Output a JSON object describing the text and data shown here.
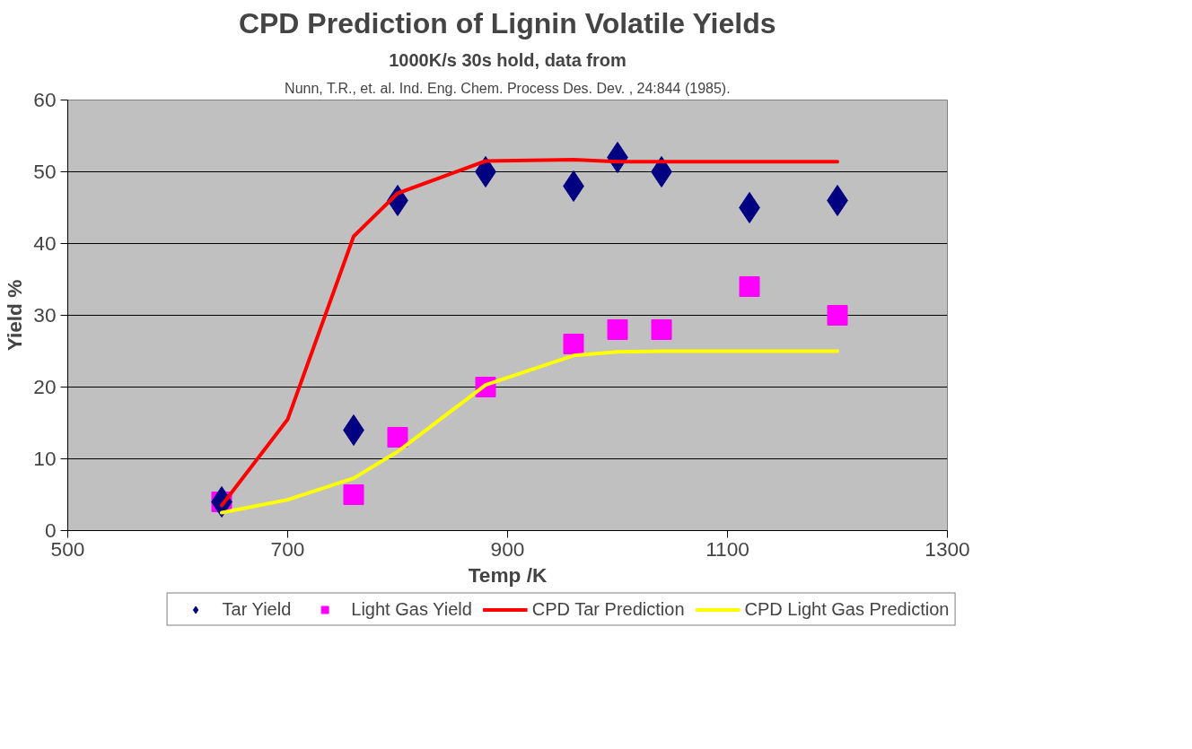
{
  "chart_data": {
    "type": "scatter",
    "title": "CPD Prediction of Lignin Volatile Yields",
    "subtitle": "1000K/s 30s hold, data from",
    "annotations": [
      "Nunn, T.R., et. al. Ind. Eng. Chem. Process Des. Dev. , 24:844 (1985)."
    ],
    "xlabel": "Temp /K",
    "ylabel": "Yield %",
    "xlim": [
      500,
      1300
    ],
    "xticks": [
      500,
      700,
      900,
      1100,
      1300
    ],
    "ylim": [
      0,
      60
    ],
    "yticks": [
      0,
      10,
      20,
      30,
      40,
      50,
      60
    ],
    "grid": "y",
    "legend": "bottom",
    "series": [
      {
        "name": "Tar Yield",
        "marker": "diamond",
        "color": "#000080",
        "x": [
          640,
          760,
          800,
          880,
          960,
          1000,
          1040,
          1120,
          1200
        ],
        "values": [
          4,
          14,
          46,
          50,
          48,
          52,
          50,
          45,
          46
        ]
      },
      {
        "name": "Light Gas Yield",
        "marker": "square",
        "color": "#ff00ff",
        "x": [
          640,
          760,
          800,
          880,
          960,
          1000,
          1040,
          1120,
          1200
        ],
        "values": [
          4,
          5,
          13,
          20,
          26,
          28,
          28,
          34,
          30
        ]
      },
      {
        "name": "CPD Tar Prediction",
        "type": "line",
        "color": "#ff0000",
        "x": [
          640,
          700,
          760,
          800,
          880,
          960,
          1000,
          1040,
          1200
        ],
        "values": [
          3.5,
          15.5,
          41,
          47,
          51.5,
          51.7,
          51.4,
          51.4,
          51.4
        ]
      },
      {
        "name": "CPD Light Gas Prediction",
        "type": "line",
        "color": "#ffff00",
        "x": [
          640,
          700,
          760,
          800,
          880,
          960,
          1000,
          1040,
          1200
        ],
        "values": [
          2.5,
          4.3,
          7.3,
          11,
          20.3,
          24.4,
          24.9,
          25,
          25
        ]
      }
    ]
  }
}
